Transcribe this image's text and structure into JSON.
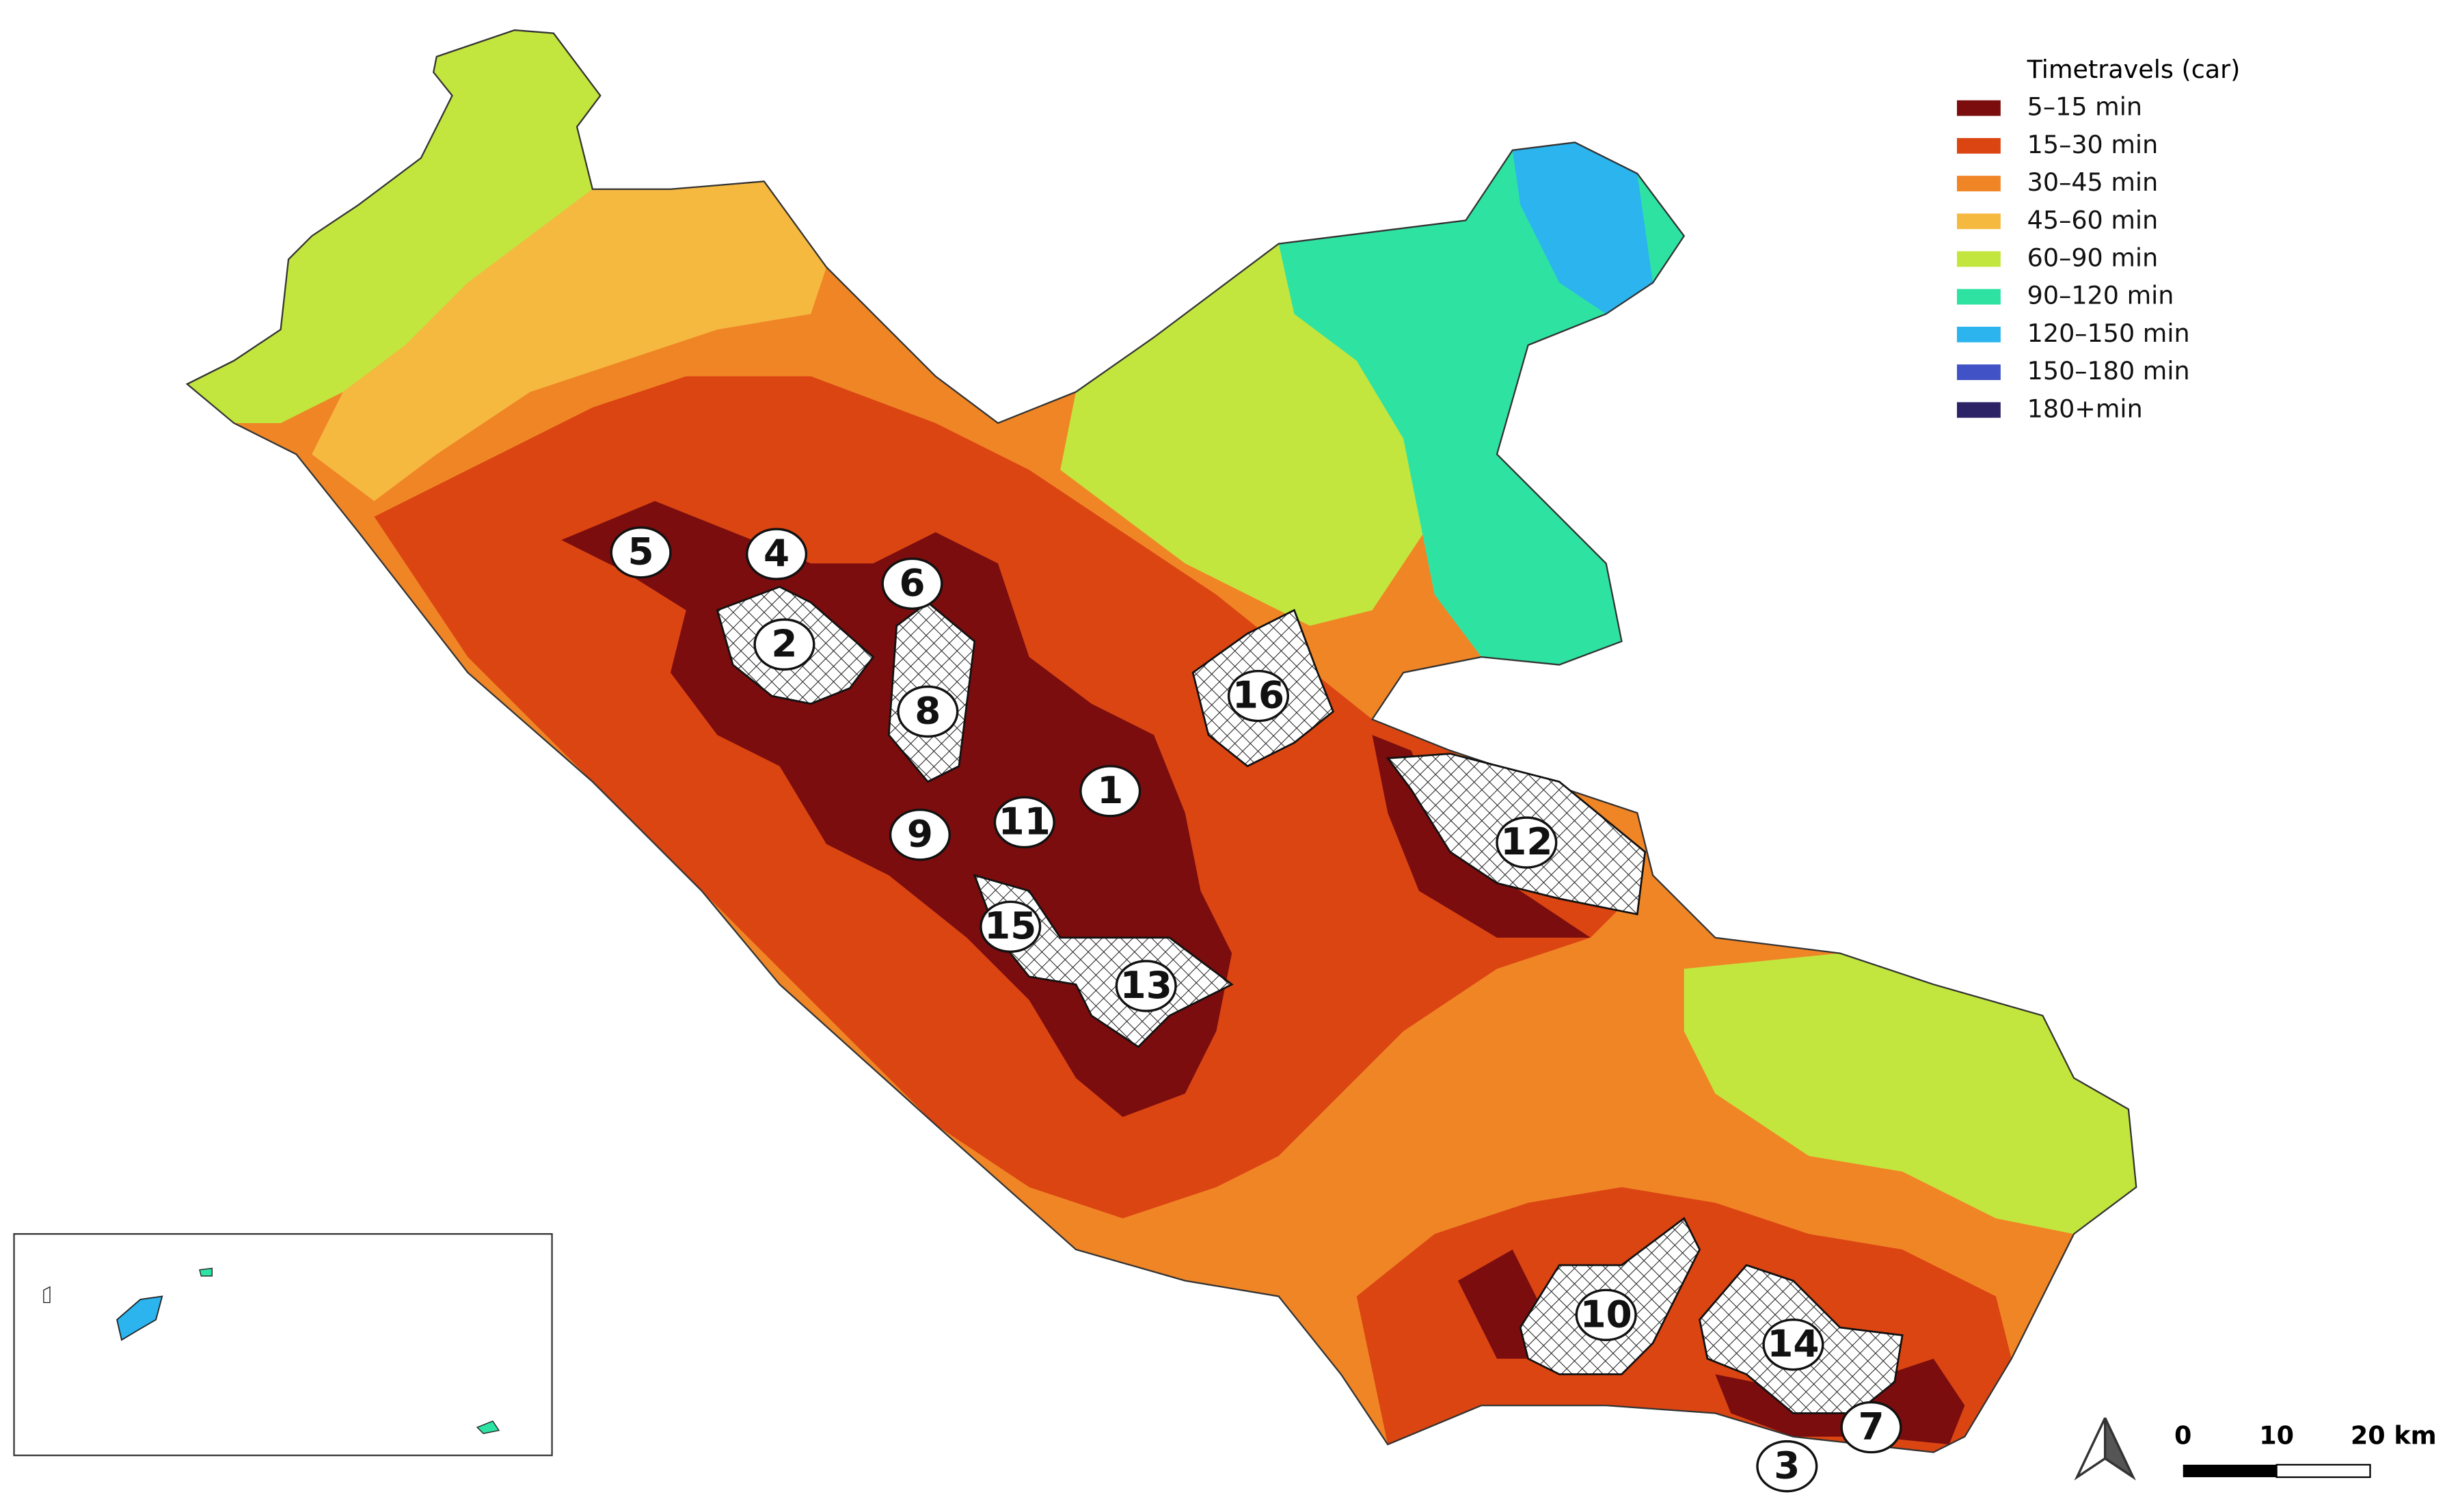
{
  "legend": {
    "title": "Timetravels (car)",
    "items": [
      {
        "label": "5–15 min",
        "color": "#7b0d0e"
      },
      {
        "label": "15–30 min",
        "color": "#db4512"
      },
      {
        "label": "30–45 min",
        "color": "#f08526"
      },
      {
        "label": "45–60 min",
        "color": "#f6b940"
      },
      {
        "label": "60–90 min",
        "color": "#c3e63e"
      },
      {
        "label": "90–120 min",
        "color": "#2ee3a2"
      },
      {
        "label": "120–150 min",
        "color": "#2bb4ee"
      },
      {
        "label": "150–180 min",
        "color": "#4152c6"
      },
      {
        "label": "180+min",
        "color": "#2b2365"
      }
    ]
  },
  "sites": [
    {
      "label": "5"
    },
    {
      "label": "4"
    },
    {
      "label": "6"
    },
    {
      "label": "2"
    },
    {
      "label": "8"
    },
    {
      "label": "16"
    },
    {
      "label": "1"
    },
    {
      "label": "11"
    },
    {
      "label": "9"
    },
    {
      "label": "12"
    },
    {
      "label": "15"
    },
    {
      "label": "13"
    },
    {
      "label": "10"
    },
    {
      "label": "14"
    },
    {
      "label": "7"
    },
    {
      "label": "3"
    }
  ],
  "scale_bar": {
    "labels": [
      "0",
      "10",
      "20 km"
    ]
  }
}
